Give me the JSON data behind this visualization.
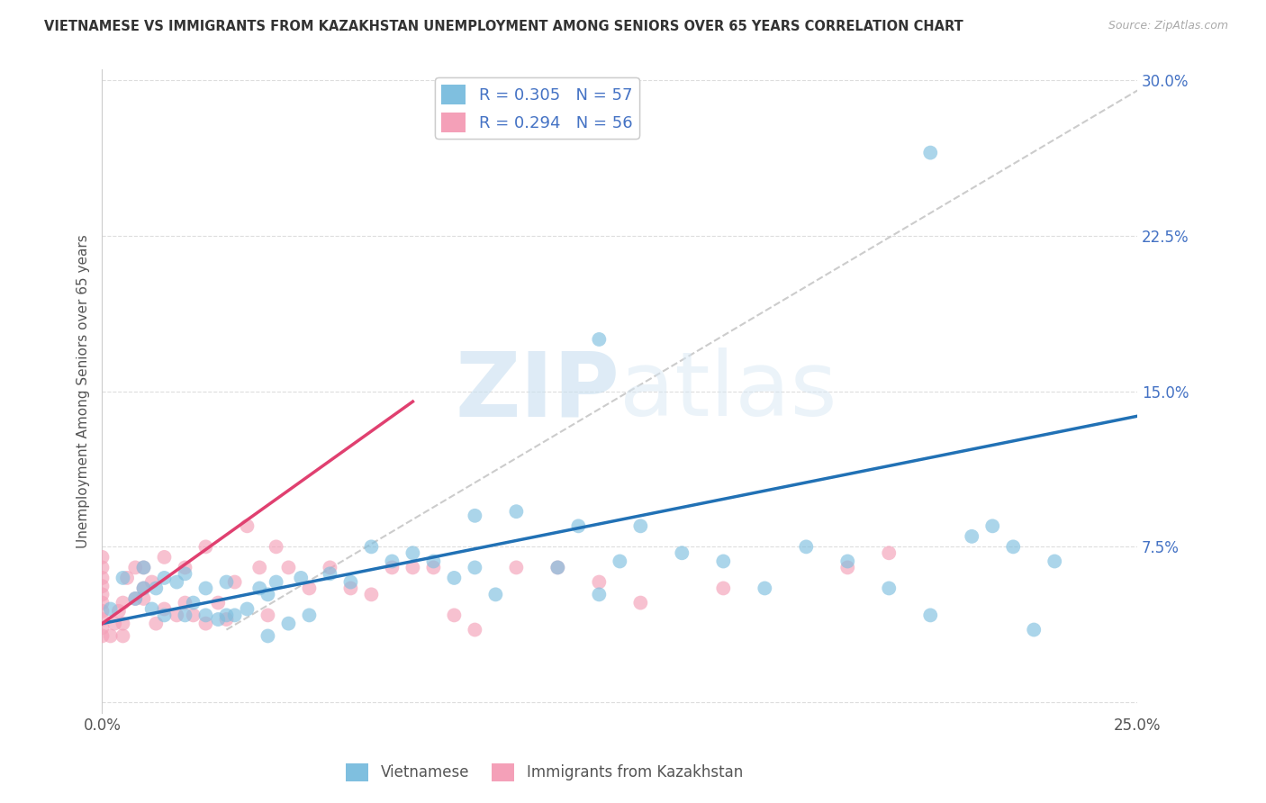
{
  "title": "VIETNAMESE VS IMMIGRANTS FROM KAZAKHSTAN UNEMPLOYMENT AMONG SENIORS OVER 65 YEARS CORRELATION CHART",
  "source": "Source: ZipAtlas.com",
  "ylabel": "Unemployment Among Seniors over 65 years",
  "xlim": [
    0.0,
    0.25
  ],
  "ylim": [
    -0.005,
    0.305
  ],
  "xticks": [
    0.0,
    0.05,
    0.1,
    0.15,
    0.2,
    0.25
  ],
  "yticks": [
    0.0,
    0.075,
    0.15,
    0.225,
    0.3
  ],
  "legend_label1": "Vietnamese",
  "legend_label2": "Immigrants from Kazakhstan",
  "R1": 0.305,
  "N1": 57,
  "R2": 0.294,
  "N2": 56,
  "color1": "#7fbfdf",
  "color2": "#f4a0b8",
  "marker_size": 130,
  "marker_alpha": 0.65,
  "watermark_zip": "ZIP",
  "watermark_atlas": "atlas",
  "blue_line_x": [
    0.0,
    0.25
  ],
  "blue_line_y": [
    0.038,
    0.138
  ],
  "pink_line_x": [
    0.0,
    0.075
  ],
  "pink_line_y": [
    0.038,
    0.145
  ],
  "diag_line_x": [
    0.03,
    0.25
  ],
  "diag_line_y": [
    0.035,
    0.295
  ],
  "viet_x": [
    0.002,
    0.005,
    0.008,
    0.01,
    0.01,
    0.012,
    0.013,
    0.015,
    0.015,
    0.018,
    0.02,
    0.02,
    0.022,
    0.025,
    0.025,
    0.028,
    0.03,
    0.03,
    0.032,
    0.035,
    0.038,
    0.04,
    0.04,
    0.042,
    0.045,
    0.048,
    0.05,
    0.055,
    0.06,
    0.065,
    0.07,
    0.075,
    0.08,
    0.085,
    0.09,
    0.095,
    0.1,
    0.11,
    0.115,
    0.12,
    0.125,
    0.13,
    0.14,
    0.15,
    0.16,
    0.17,
    0.18,
    0.19,
    0.2,
    0.21,
    0.215,
    0.22,
    0.225,
    0.23,
    0.2,
    0.12,
    0.09
  ],
  "viet_y": [
    0.045,
    0.06,
    0.05,
    0.055,
    0.065,
    0.045,
    0.055,
    0.042,
    0.06,
    0.058,
    0.042,
    0.062,
    0.048,
    0.042,
    0.055,
    0.04,
    0.042,
    0.058,
    0.042,
    0.045,
    0.055,
    0.032,
    0.052,
    0.058,
    0.038,
    0.06,
    0.042,
    0.062,
    0.058,
    0.075,
    0.068,
    0.072,
    0.068,
    0.06,
    0.065,
    0.052,
    0.092,
    0.065,
    0.085,
    0.052,
    0.068,
    0.085,
    0.072,
    0.068,
    0.055,
    0.075,
    0.068,
    0.055,
    0.042,
    0.08,
    0.085,
    0.075,
    0.035,
    0.068,
    0.265,
    0.175,
    0.09
  ],
  "kaz_x": [
    0.0,
    0.0,
    0.0,
    0.0,
    0.0,
    0.0,
    0.0,
    0.0,
    0.0,
    0.0,
    0.002,
    0.003,
    0.004,
    0.005,
    0.005,
    0.005,
    0.006,
    0.008,
    0.008,
    0.01,
    0.01,
    0.01,
    0.012,
    0.013,
    0.015,
    0.015,
    0.018,
    0.02,
    0.02,
    0.022,
    0.025,
    0.025,
    0.028,
    0.03,
    0.032,
    0.035,
    0.038,
    0.04,
    0.042,
    0.045,
    0.05,
    0.055,
    0.06,
    0.065,
    0.07,
    0.075,
    0.08,
    0.085,
    0.09,
    0.1,
    0.11,
    0.12,
    0.13,
    0.15,
    0.18,
    0.19
  ],
  "kaz_y": [
    0.032,
    0.036,
    0.04,
    0.044,
    0.048,
    0.052,
    0.056,
    0.06,
    0.065,
    0.07,
    0.032,
    0.038,
    0.044,
    0.032,
    0.038,
    0.048,
    0.06,
    0.05,
    0.065,
    0.05,
    0.055,
    0.065,
    0.058,
    0.038,
    0.045,
    0.07,
    0.042,
    0.048,
    0.065,
    0.042,
    0.038,
    0.075,
    0.048,
    0.04,
    0.058,
    0.085,
    0.065,
    0.042,
    0.075,
    0.065,
    0.055,
    0.065,
    0.055,
    0.052,
    0.065,
    0.065,
    0.065,
    0.042,
    0.035,
    0.065,
    0.065,
    0.058,
    0.048,
    0.055,
    0.065,
    0.072
  ]
}
